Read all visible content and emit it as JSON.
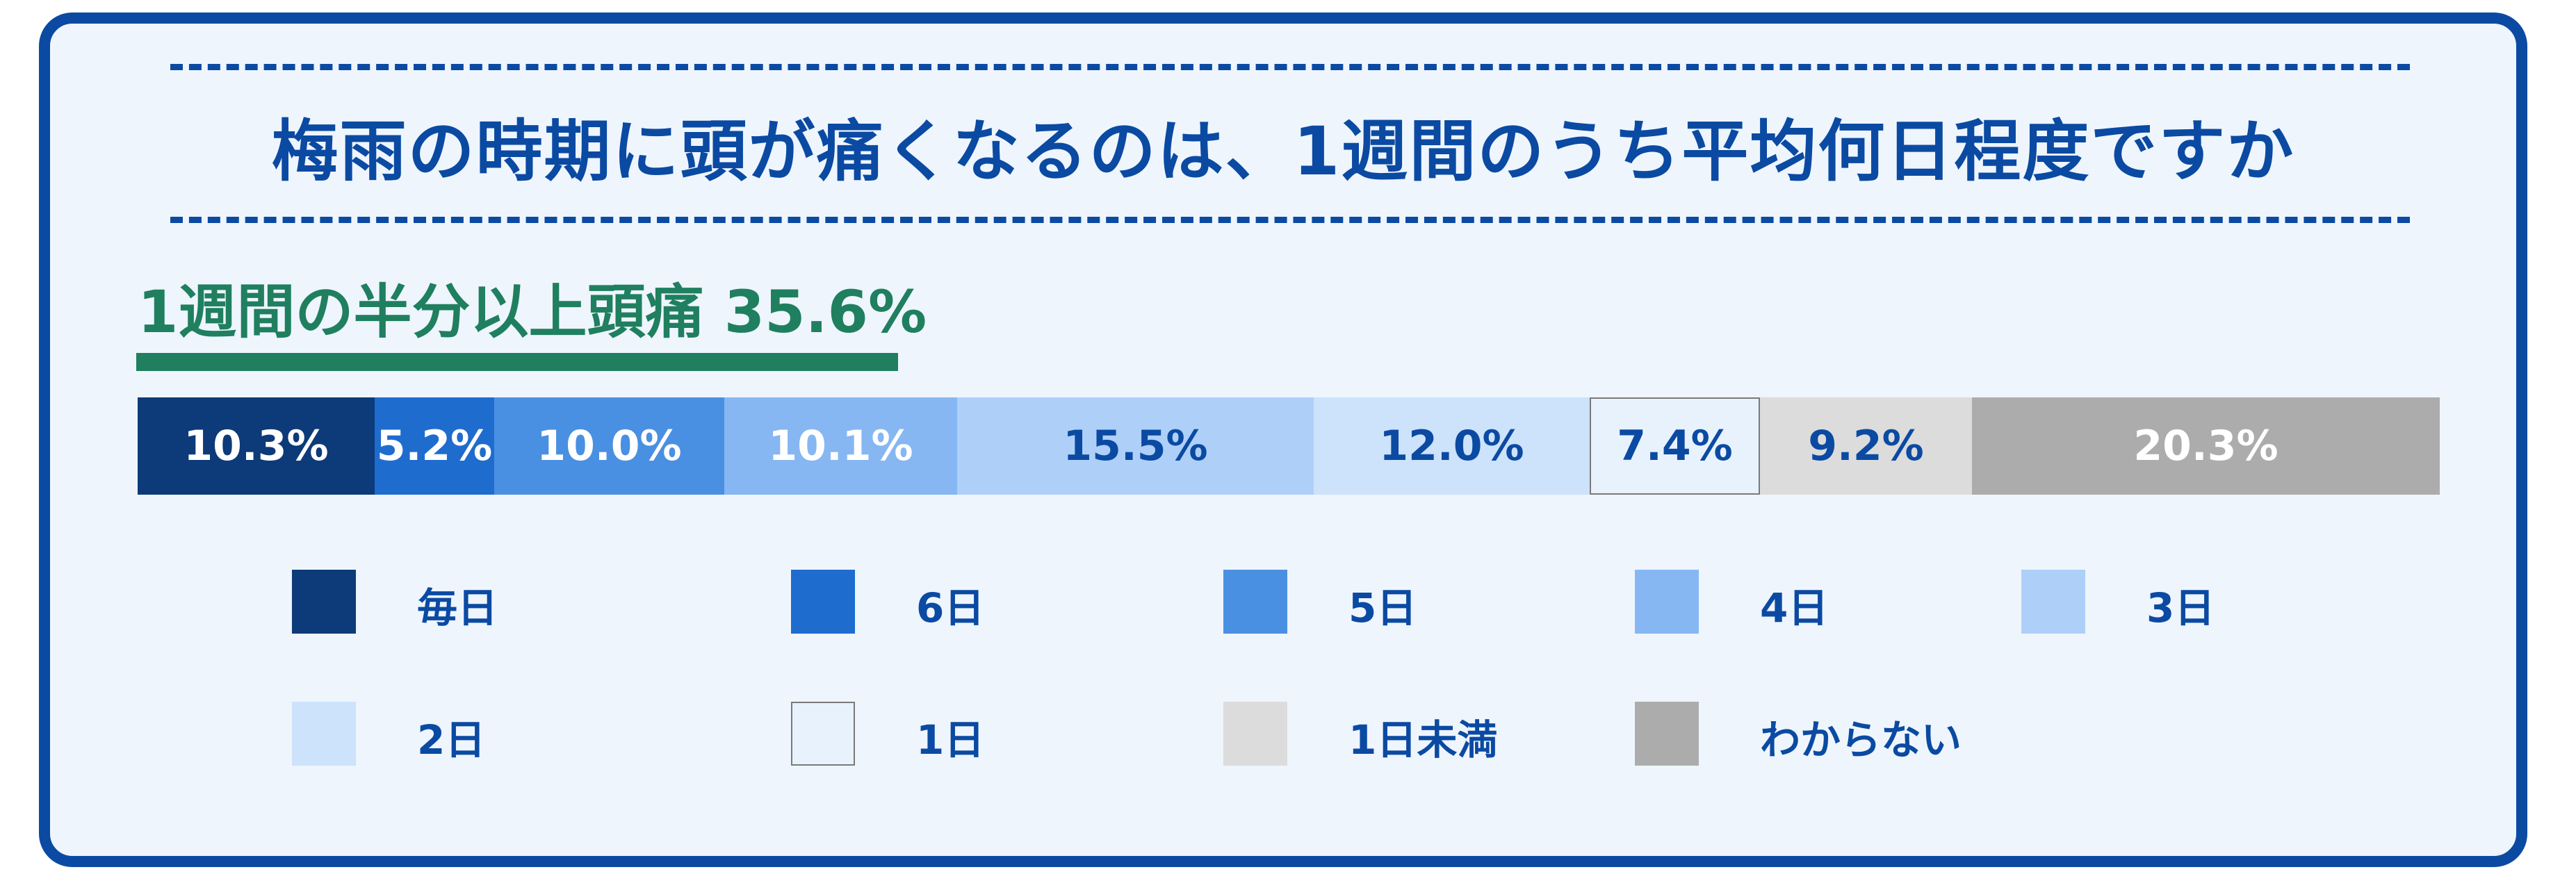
{
  "title": "梅雨の時期に頭が痛くなるのは、1週間のうち平均何日程度ですか",
  "subtitle": "1週間の半分以上頭痛 35.6%",
  "chart_data": {
    "type": "bar",
    "orientation": "horizontal-stacked-100",
    "title": "梅雨の時期に頭が痛くなるのは、1週間のうち平均何日程度ですか",
    "subtitle": "1週間の半分以上頭痛 35.6%",
    "unit": "%",
    "categories": [
      "毎日",
      "6日",
      "5日",
      "4日",
      "3日",
      "2日",
      "1日",
      "1日未満",
      "わからない"
    ],
    "values": [
      10.3,
      5.2,
      10.0,
      10.1,
      15.5,
      12.0,
      7.4,
      9.2,
      20.3
    ],
    "labels": [
      "10.3%",
      "5.2%",
      "10.0%",
      "10.1%",
      "15.5%",
      "12.0%",
      "7.4%",
      "9.2%",
      "20.3%"
    ],
    "colors": [
      "#0d3a78",
      "#1f6ccf",
      "#4a90e2",
      "#86b7f2",
      "#aed0f8",
      "#cde2fb",
      "#e8f2fd",
      "#dcdcdc",
      "#acacac"
    ],
    "label_colors": [
      "#ffffff",
      "#ffffff",
      "#ffffff",
      "#ffffff",
      "#0b4aa2",
      "#0b4aa2",
      "#0b4aa2",
      "#0b4aa2",
      "#ffffff"
    ],
    "legend_position": "bottom",
    "grid": false
  }
}
